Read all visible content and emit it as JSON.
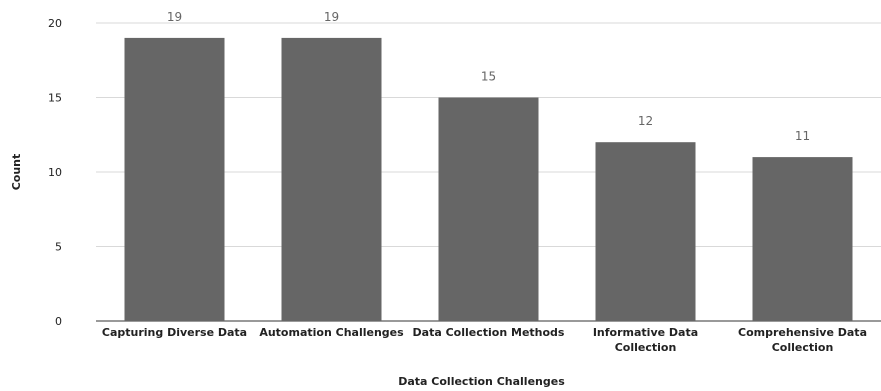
{
  "chart_data": {
    "type": "bar",
    "categories": [
      "Capturing Diverse Data",
      "Automation Challenges",
      "Data Collection Methods",
      "Informative Data Collection",
      "Comprehensive Data Collection"
    ],
    "category_lines": [
      [
        "Capturing Diverse Data"
      ],
      [
        "Automation Challenges"
      ],
      [
        "Data Collection Methods"
      ],
      [
        "Informative Data",
        "Collection"
      ],
      [
        "Comprehensive Data",
        "Collection"
      ]
    ],
    "values": [
      19,
      19,
      15,
      12,
      11
    ],
    "xlabel": "Data Collection Challenges",
    "ylabel": "Count",
    "ylim": [
      0,
      20
    ],
    "yticks": [
      0,
      5,
      10,
      15,
      20
    ],
    "grid": true,
    "legend": "none",
    "bar_color": "#666666",
    "gridline_color": "#d9d9d9",
    "value_label_color": "#666666"
  }
}
